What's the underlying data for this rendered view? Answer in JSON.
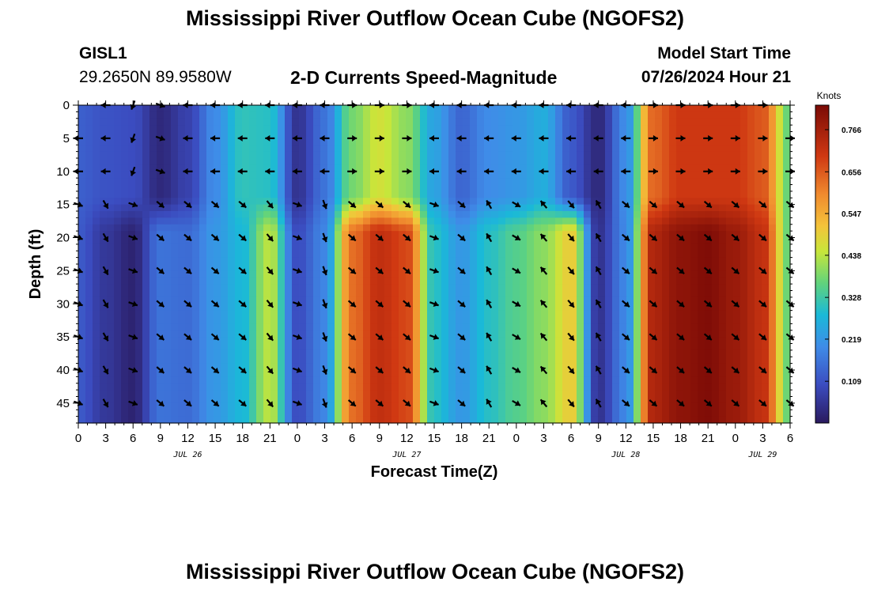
{
  "header": {
    "title": "Mississippi River Outflow Ocean Cube (NGOFS2)",
    "bottom_title": "Mississippi River Outflow Ocean Cube (NGOFS2)",
    "station": "GISL1",
    "coords": "29.2650N  89.9580W",
    "subtitle": "2-D Currents Speed-Magnitude",
    "start_label": "Model Start Time",
    "start_value": "07/26/2024 Hour 21"
  },
  "chart_data": {
    "type": "heatmap",
    "xlabel": "Forecast Time(Z)",
    "ylabel": "Depth (ft)",
    "colorbar_unit": "Knots",
    "colorbar_ticks": [
      0.109,
      0.219,
      0.328,
      0.438,
      0.547,
      0.656,
      0.766
    ],
    "colorbar_range": [
      0.0,
      0.83
    ],
    "x_range_hours": [
      0,
      78
    ],
    "y_range_ft": [
      0,
      48
    ],
    "x_tick_labels": [
      "0",
      "3",
      "6",
      "9",
      "12",
      "15",
      "18",
      "21",
      "0",
      "3",
      "6",
      "9",
      "12",
      "15",
      "18",
      "21",
      "0",
      "3",
      "6",
      "9",
      "12",
      "15",
      "18",
      "21",
      "0",
      "3",
      "6"
    ],
    "y_tick_labels": [
      "0",
      "5",
      "10",
      "15",
      "20",
      "25",
      "30",
      "35",
      "40",
      "45"
    ],
    "date_labels": [
      {
        "text": "JUL 26",
        "hour": 12
      },
      {
        "text": "JUL 27",
        "hour": 36
      },
      {
        "text": "JUL 28",
        "hour": 60
      },
      {
        "text": "JUL 29",
        "hour": 75
      }
    ],
    "time_hours": [
      0,
      3,
      6,
      9,
      12,
      15,
      18,
      21,
      24,
      27,
      30,
      33,
      36,
      39,
      42,
      45,
      48,
      51,
      54,
      57,
      60,
      63,
      66,
      69,
      72,
      75,
      78
    ],
    "depths_ft": [
      0,
      5,
      10,
      15,
      20,
      25,
      30,
      35,
      40,
      45
    ],
    "speed_upper_knots": [
      0.13,
      0.11,
      0.1,
      0.03,
      0.08,
      0.2,
      0.31,
      0.3,
      0.05,
      0.16,
      0.38,
      0.46,
      0.4,
      0.24,
      0.14,
      0.2,
      0.22,
      0.26,
      0.12,
      0.03,
      0.2,
      0.64,
      0.7,
      0.7,
      0.7,
      0.66,
      0.36
    ],
    "speed_lower_knots": [
      0.12,
      0.06,
      0.02,
      0.16,
      0.15,
      0.22,
      0.28,
      0.44,
      0.1,
      0.19,
      0.63,
      0.72,
      0.68,
      0.3,
      0.22,
      0.3,
      0.35,
      0.4,
      0.5,
      0.05,
      0.19,
      0.75,
      0.8,
      0.82,
      0.78,
      0.72,
      0.36
    ],
    "direction_upper_deg": [
      270,
      270,
      200,
      110,
      270,
      270,
      270,
      270,
      270,
      270,
      90,
      90,
      90,
      270,
      270,
      270,
      270,
      270,
      270,
      270,
      270,
      90,
      90,
      90,
      90,
      90,
      90
    ],
    "direction_lower_deg": [
      110,
      150,
      110,
      130,
      130,
      130,
      130,
      140,
      110,
      160,
      130,
      130,
      130,
      110,
      130,
      330,
      120,
      320,
      140,
      330,
      130,
      130,
      130,
      130,
      130,
      130,
      130
    ]
  }
}
